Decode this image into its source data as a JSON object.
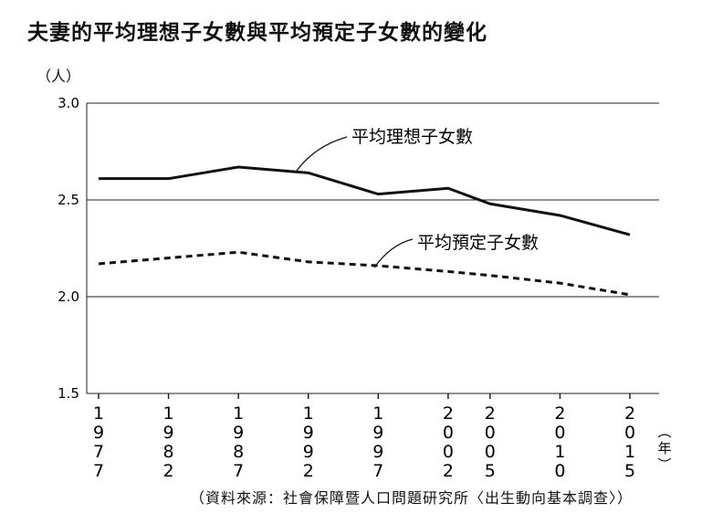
{
  "title": "夫妻的平均理想子女數與平均預定子女數的變化",
  "unit_label": "（人）",
  "source": "（資料來源：社會保障暨人口問題研究所〈出生動向基本調查〉）",
  "chart_data": {
    "type": "line",
    "title": "夫妻的平均理想子女數與平均預定子女數的變化",
    "ylabel": "（人）",
    "xlabel": "（年）",
    "x": [
      1977,
      1982,
      1987,
      1992,
      1997,
      2002,
      2005,
      2010,
      2015
    ],
    "x_tick_labels": [
      "1977",
      "1982",
      "1987",
      "1992",
      "1997",
      "2002",
      "2005",
      "2010",
      "2015"
    ],
    "ylim": [
      1.5,
      3.0
    ],
    "y_ticks": [
      "1.5",
      "2.0",
      "2.5",
      "3.0"
    ],
    "grid": "horizontal",
    "series": [
      {
        "name": "平均理想子女數",
        "style": "solid",
        "values": [
          2.61,
          2.61,
          2.67,
          2.64,
          2.53,
          2.56,
          2.48,
          2.42,
          2.32
        ]
      },
      {
        "name": "平均預定子女數",
        "style": "dashed",
        "values": [
          2.17,
          2.2,
          2.23,
          2.18,
          2.16,
          2.13,
          2.11,
          2.07,
          2.01
        ]
      }
    ],
    "line_color": "#111111"
  }
}
